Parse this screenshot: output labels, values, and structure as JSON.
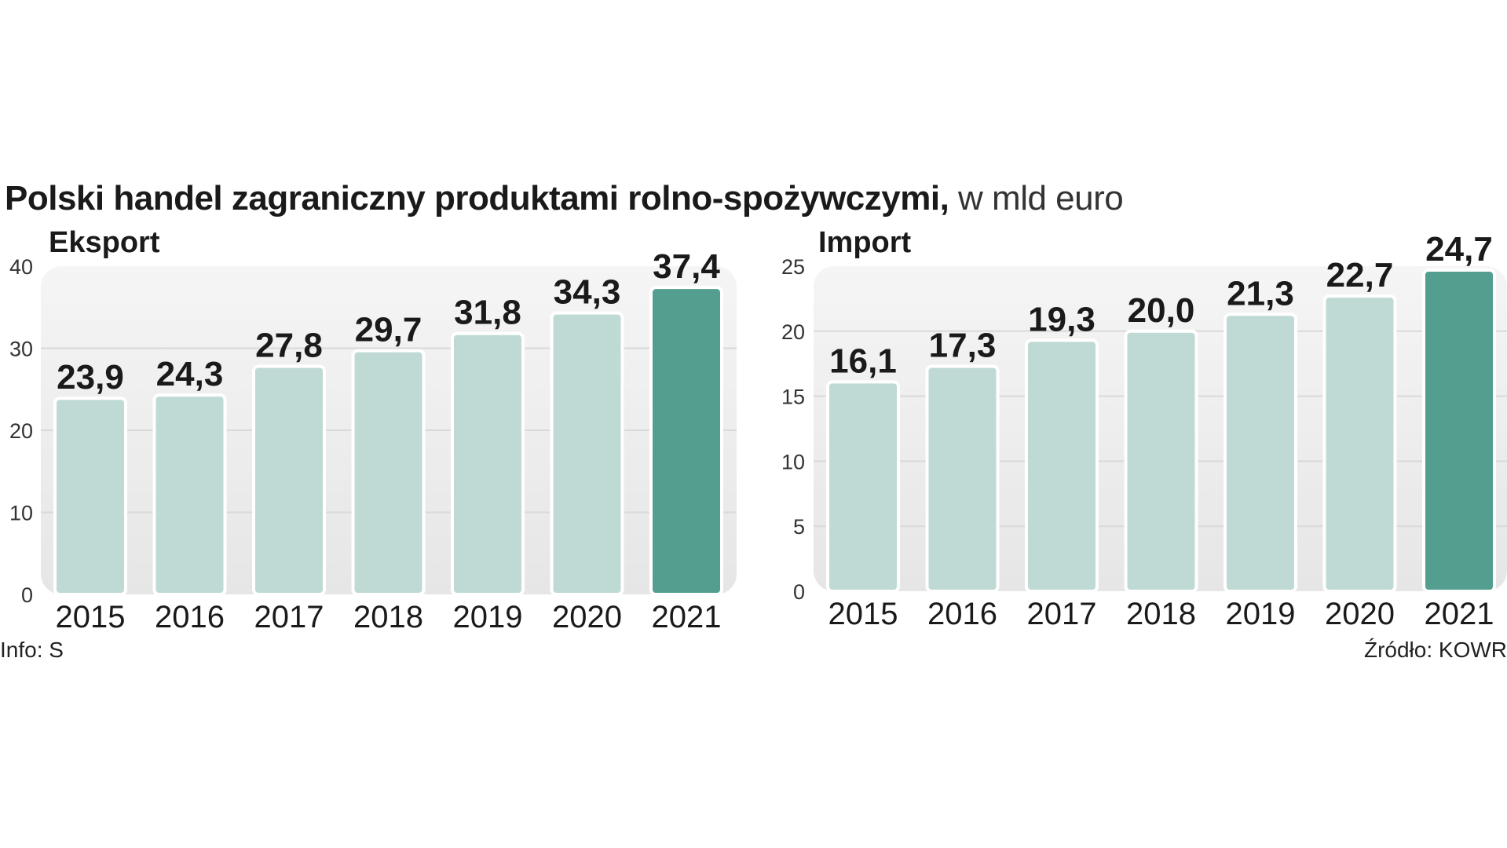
{
  "title": {
    "bold": "Polski handel zagraniczny produktami rolno-spożywczymi,",
    "light": "w mld euro"
  },
  "footer": {
    "info": "Info: S",
    "source": "Źródło: KOWR"
  },
  "colors": {
    "bar_light": "#bfdad4",
    "bar_highlight": "#539e8f",
    "panel_bg": "#efefef",
    "grid": "#d9d9d9"
  },
  "chart_data": [
    {
      "type": "bar",
      "title": "Eksport",
      "categories": [
        "2015",
        "2016",
        "2017",
        "2018",
        "2019",
        "2020",
        "2021"
      ],
      "values": [
        23.9,
        24.3,
        27.8,
        29.7,
        31.8,
        34.3,
        37.4
      ],
      "value_labels": [
        "23,9",
        "24,3",
        "27,8",
        "29,7",
        "31,8",
        "34,3",
        "37,4"
      ],
      "highlight_category": "2021",
      "ylim": [
        0,
        40
      ],
      "yticks": [
        0,
        10,
        20,
        30,
        40
      ],
      "ytick_labels": [
        "0",
        "10",
        "20",
        "30",
        "40"
      ],
      "xlabel": "",
      "ylabel": "",
      "grid": true
    },
    {
      "type": "bar",
      "title": "Import",
      "categories": [
        "2015",
        "2016",
        "2017",
        "2018",
        "2019",
        "2020",
        "2021"
      ],
      "values": [
        16.1,
        17.3,
        19.3,
        20.0,
        21.3,
        22.7,
        24.7
      ],
      "value_labels": [
        "16,1",
        "17,3",
        "19,3",
        "20,0",
        "21,3",
        "22,7",
        "24,7"
      ],
      "highlight_category": "2021",
      "ylim": [
        0,
        25
      ],
      "yticks": [
        0,
        5,
        10,
        15,
        20,
        25
      ],
      "ytick_labels": [
        "0",
        "5",
        "10",
        "15",
        "20",
        "25"
      ],
      "xlabel": "",
      "ylabel": "",
      "grid": true
    }
  ]
}
